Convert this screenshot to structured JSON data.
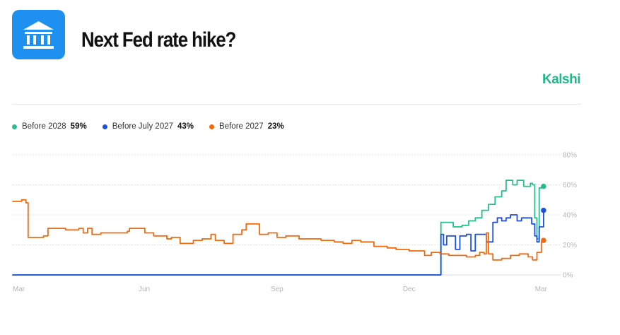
{
  "header": {
    "icon": "bank-icon",
    "title": "Next Fed rate hike?",
    "brand": "Kalshi",
    "brand_color": "#1fb98a",
    "icon_color": "#1e90f0"
  },
  "legend": [
    {
      "label": "Before 2028",
      "value": "59%",
      "color": "#23c08a"
    },
    {
      "label": "Before July 2027",
      "value": "43%",
      "color": "#1f4fe0"
    },
    {
      "label": "Before 2027",
      "value": "23%",
      "color": "#f06a0f"
    }
  ],
  "chart_data": {
    "type": "line",
    "title": "Next Fed rate hike?",
    "x_tick_labels": [
      "Mar",
      "Jun",
      "Sep",
      "Dec",
      "Mar"
    ],
    "x_tick_positions": [
      0,
      3,
      6,
      9,
      12
    ],
    "x_range": [
      0,
      12.1
    ],
    "y_tick_labels": [
      "0%",
      "20%",
      "40%",
      "60%",
      "80%"
    ],
    "y_tick_values": [
      0,
      20,
      40,
      60,
      80
    ],
    "ylim": [
      0,
      80
    ],
    "grid": true,
    "legend_position": "top-left",
    "series": [
      {
        "name": "Before 2028",
        "color": "#23c08a",
        "end_value": 59,
        "points": [
          [
            0,
            0
          ],
          [
            9.7,
            0
          ],
          [
            9.72,
            35
          ],
          [
            9.9,
            35
          ],
          [
            10.0,
            32
          ],
          [
            10.2,
            33
          ],
          [
            10.35,
            36
          ],
          [
            10.5,
            38
          ],
          [
            10.65,
            43
          ],
          [
            10.8,
            47
          ],
          [
            10.95,
            52
          ],
          [
            11.1,
            56
          ],
          [
            11.2,
            63
          ],
          [
            11.35,
            60
          ],
          [
            11.45,
            63
          ],
          [
            11.6,
            59
          ],
          [
            11.75,
            61
          ],
          [
            11.8,
            60
          ],
          [
            11.85,
            38
          ],
          [
            11.9,
            24
          ],
          [
            11.95,
            58
          ],
          [
            12.05,
            59
          ]
        ]
      },
      {
        "name": "Before July 2027",
        "color": "#1f4fe0",
        "end_value": 43,
        "points": [
          [
            0,
            0
          ],
          [
            9.7,
            0
          ],
          [
            9.72,
            27
          ],
          [
            9.78,
            20
          ],
          [
            9.85,
            26
          ],
          [
            9.95,
            26
          ],
          [
            10.05,
            17
          ],
          [
            10.15,
            26
          ],
          [
            10.3,
            27
          ],
          [
            10.4,
            16
          ],
          [
            10.5,
            27
          ],
          [
            10.65,
            27
          ],
          [
            10.75,
            22
          ],
          [
            10.8,
            22
          ],
          [
            10.9,
            35
          ],
          [
            11.0,
            38
          ],
          [
            11.1,
            36
          ],
          [
            11.2,
            38
          ],
          [
            11.3,
            40
          ],
          [
            11.45,
            36
          ],
          [
            11.55,
            38
          ],
          [
            11.7,
            38
          ],
          [
            11.78,
            34
          ],
          [
            11.85,
            26
          ],
          [
            11.9,
            22
          ],
          [
            11.95,
            32
          ],
          [
            12.05,
            43
          ]
        ]
      },
      {
        "name": "Before 2027",
        "color": "#f06a0f",
        "end_value": 23,
        "points": [
          [
            0,
            49
          ],
          [
            0.2,
            50
          ],
          [
            0.3,
            48
          ],
          [
            0.35,
            25
          ],
          [
            0.45,
            25
          ],
          [
            0.7,
            26
          ],
          [
            0.8,
            31
          ],
          [
            1.0,
            31
          ],
          [
            1.2,
            30
          ],
          [
            1.5,
            31
          ],
          [
            1.6,
            28
          ],
          [
            1.7,
            31
          ],
          [
            1.8,
            27
          ],
          [
            2.0,
            28
          ],
          [
            2.1,
            28
          ],
          [
            2.6,
            29
          ],
          [
            2.65,
            31
          ],
          [
            2.9,
            31
          ],
          [
            3.0,
            28
          ],
          [
            3.2,
            26
          ],
          [
            3.5,
            24
          ],
          [
            3.6,
            25
          ],
          [
            3.8,
            21
          ],
          [
            4.1,
            23
          ],
          [
            4.3,
            24
          ],
          [
            4.5,
            27
          ],
          [
            4.6,
            23
          ],
          [
            4.8,
            21
          ],
          [
            5.0,
            27
          ],
          [
            5.2,
            30
          ],
          [
            5.3,
            34
          ],
          [
            5.5,
            34
          ],
          [
            5.6,
            27
          ],
          [
            5.8,
            28
          ],
          [
            6.0,
            25
          ],
          [
            6.2,
            26
          ],
          [
            6.4,
            26
          ],
          [
            6.5,
            24
          ],
          [
            6.8,
            24
          ],
          [
            7.0,
            23
          ],
          [
            7.3,
            22
          ],
          [
            7.5,
            21
          ],
          [
            7.7,
            23
          ],
          [
            7.9,
            22
          ],
          [
            8.2,
            19
          ],
          [
            8.5,
            18
          ],
          [
            8.7,
            17
          ],
          [
            8.9,
            17
          ],
          [
            9.0,
            16
          ],
          [
            9.2,
            16
          ],
          [
            9.35,
            13
          ],
          [
            9.5,
            15
          ],
          [
            9.7,
            14
          ],
          [
            9.9,
            13
          ],
          [
            10.1,
            13
          ],
          [
            10.3,
            12
          ],
          [
            10.5,
            13
          ],
          [
            10.6,
            15
          ],
          [
            10.7,
            14
          ],
          [
            10.75,
            28
          ],
          [
            10.8,
            14
          ],
          [
            10.9,
            10
          ],
          [
            11.1,
            11
          ],
          [
            11.3,
            13
          ],
          [
            11.5,
            14
          ],
          [
            11.6,
            14
          ],
          [
            11.7,
            12
          ],
          [
            11.8,
            10
          ],
          [
            11.9,
            15
          ],
          [
            12.0,
            22
          ],
          [
            12.05,
            23
          ]
        ]
      }
    ]
  }
}
